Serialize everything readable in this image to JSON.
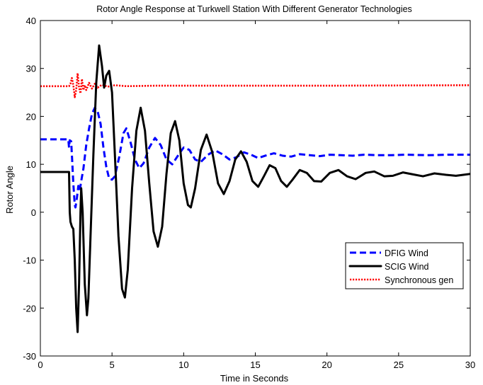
{
  "chart_data": {
    "type": "line",
    "title": "Rotor Angle Response at Turkwell Station With Different Generator Technologies",
    "xlabel": "Time in Seconds",
    "ylabel": "Rotor Angle",
    "xlim": [
      0,
      30
    ],
    "ylim": [
      -30,
      40
    ],
    "xticks": [
      0,
      5,
      10,
      15,
      20,
      25,
      30
    ],
    "yticks": [
      -30,
      -20,
      -10,
      0,
      10,
      20,
      30,
      40
    ],
    "grid": false,
    "legend_position": "lower-right",
    "series": [
      {
        "name": "DFIG Wind",
        "color": "#0000ff",
        "style": "dashed",
        "points": [
          [
            0,
            15.2
          ],
          [
            1.95,
            15.2
          ],
          [
            2.0,
            13.5
          ],
          [
            2.05,
            15.0
          ],
          [
            2.15,
            14.8
          ],
          [
            2.2,
            12.0
          ],
          [
            2.3,
            6.0
          ],
          [
            2.4,
            1.5
          ],
          [
            2.45,
            1.0
          ],
          [
            2.55,
            3.0
          ],
          [
            2.65,
            5.5
          ],
          [
            2.75,
            4.5
          ],
          [
            2.85,
            6.5
          ],
          [
            3.0,
            9.0
          ],
          [
            3.2,
            14.0
          ],
          [
            3.4,
            17.5
          ],
          [
            3.6,
            20.5
          ],
          [
            3.8,
            21.8
          ],
          [
            4.0,
            21.0
          ],
          [
            4.2,
            18.5
          ],
          [
            4.4,
            13.5
          ],
          [
            4.6,
            9.5
          ],
          [
            4.8,
            7.0
          ],
          [
            5.0,
            6.8
          ],
          [
            5.2,
            7.5
          ],
          [
            5.5,
            11.5
          ],
          [
            5.8,
            16.5
          ],
          [
            6.0,
            17.5
          ],
          [
            6.3,
            14.5
          ],
          [
            6.6,
            11.0
          ],
          [
            6.9,
            9.2
          ],
          [
            7.2,
            10.2
          ],
          [
            7.6,
            13.5
          ],
          [
            8.0,
            15.5
          ],
          [
            8.4,
            14.0
          ],
          [
            8.8,
            11.0
          ],
          [
            9.2,
            10.0
          ],
          [
            9.6,
            11.8
          ],
          [
            10.0,
            13.5
          ],
          [
            10.4,
            13.0
          ],
          [
            10.8,
            11.0
          ],
          [
            11.2,
            10.5
          ],
          [
            11.7,
            12.0
          ],
          [
            12.2,
            12.9
          ],
          [
            12.7,
            12.1
          ],
          [
            13.2,
            11.0
          ],
          [
            13.7,
            11.5
          ],
          [
            14.2,
            12.5
          ],
          [
            14.7,
            12.0
          ],
          [
            15.2,
            11.3
          ],
          [
            15.7,
            11.8
          ],
          [
            16.3,
            12.3
          ],
          [
            16.9,
            11.8
          ],
          [
            17.5,
            11.6
          ],
          [
            18.1,
            12.1
          ],
          [
            18.8,
            11.9
          ],
          [
            19.5,
            11.7
          ],
          [
            20.2,
            12.0
          ],
          [
            21.0,
            11.9
          ],
          [
            21.8,
            11.8
          ],
          [
            22.6,
            12.0
          ],
          [
            23.5,
            11.9
          ],
          [
            24.5,
            11.9
          ],
          [
            25.5,
            12.0
          ],
          [
            27.0,
            11.9
          ],
          [
            28.5,
            12.0
          ],
          [
            30,
            12.0
          ]
        ]
      },
      {
        "name": "SCIG Wind",
        "color": "#000000",
        "style": "solid",
        "points": [
          [
            0,
            8.4
          ],
          [
            2.0,
            8.4
          ],
          [
            2.05,
            0.0
          ],
          [
            2.1,
            -2.0
          ],
          [
            2.15,
            -2.5
          ],
          [
            2.2,
            -3.0
          ],
          [
            2.3,
            -3.5
          ],
          [
            2.4,
            -10.0
          ],
          [
            2.5,
            -20.0
          ],
          [
            2.6,
            -25.0
          ],
          [
            2.7,
            -15.0
          ],
          [
            2.8,
            0.0
          ],
          [
            2.85,
            5.0
          ],
          [
            2.95,
            0.0
          ],
          [
            3.1,
            -15.0
          ],
          [
            3.25,
            -21.5
          ],
          [
            3.35,
            -18.0
          ],
          [
            3.5,
            -5.0
          ],
          [
            3.7,
            12.0
          ],
          [
            3.9,
            27.0
          ],
          [
            4.1,
            34.8
          ],
          [
            4.3,
            30.5
          ],
          [
            4.45,
            26.0
          ],
          [
            4.6,
            28.5
          ],
          [
            4.8,
            29.5
          ],
          [
            5.0,
            25.0
          ],
          [
            5.2,
            12.0
          ],
          [
            5.45,
            -5.0
          ],
          [
            5.7,
            -16.0
          ],
          [
            5.9,
            -17.8
          ],
          [
            6.1,
            -12.0
          ],
          [
            6.4,
            5.0
          ],
          [
            6.7,
            17.0
          ],
          [
            7.0,
            21.8
          ],
          [
            7.3,
            17.0
          ],
          [
            7.6,
            6.0
          ],
          [
            7.9,
            -4.0
          ],
          [
            8.2,
            -7.2
          ],
          [
            8.5,
            -3.0
          ],
          [
            8.8,
            8.0
          ],
          [
            9.1,
            16.5
          ],
          [
            9.4,
            19.0
          ],
          [
            9.7,
            15.0
          ],
          [
            10.0,
            6.0
          ],
          [
            10.3,
            1.5
          ],
          [
            10.5,
            1.0
          ],
          [
            10.8,
            5.0
          ],
          [
            11.2,
            13.0
          ],
          [
            11.6,
            16.2
          ],
          [
            12.0,
            12.5
          ],
          [
            12.4,
            6.0
          ],
          [
            12.8,
            3.8
          ],
          [
            13.2,
            6.5
          ],
          [
            13.6,
            11.0
          ],
          [
            14.0,
            12.7
          ],
          [
            14.4,
            10.5
          ],
          [
            14.8,
            6.5
          ],
          [
            15.2,
            5.3
          ],
          [
            15.6,
            7.5
          ],
          [
            16.0,
            9.8
          ],
          [
            16.4,
            9.2
          ],
          [
            16.8,
            6.5
          ],
          [
            17.2,
            5.3
          ],
          [
            17.6,
            6.8
          ],
          [
            18.1,
            8.8
          ],
          [
            18.6,
            8.2
          ],
          [
            19.1,
            6.5
          ],
          [
            19.6,
            6.4
          ],
          [
            20.2,
            8.2
          ],
          [
            20.8,
            8.8
          ],
          [
            21.4,
            7.5
          ],
          [
            22.0,
            6.9
          ],
          [
            22.7,
            8.2
          ],
          [
            23.3,
            8.5
          ],
          [
            24.0,
            7.5
          ],
          [
            24.6,
            7.6
          ],
          [
            25.3,
            8.3
          ],
          [
            26.0,
            7.9
          ],
          [
            26.7,
            7.5
          ],
          [
            27.5,
            8.1
          ],
          [
            28.3,
            7.8
          ],
          [
            29.0,
            7.6
          ],
          [
            30,
            8.0
          ]
        ]
      },
      {
        "name": "Synchronous gen",
        "color": "#ff0000",
        "style": "dotted",
        "points": [
          [
            0,
            26.3
          ],
          [
            2.0,
            26.3
          ],
          [
            2.1,
            26.8
          ],
          [
            2.2,
            28.0
          ],
          [
            2.3,
            26.5
          ],
          [
            2.4,
            24.0
          ],
          [
            2.5,
            25.5
          ],
          [
            2.6,
            29.0
          ],
          [
            2.7,
            26.0
          ],
          [
            2.8,
            24.8
          ],
          [
            2.9,
            27.8
          ],
          [
            3.0,
            25.5
          ],
          [
            3.1,
            26.5
          ],
          [
            3.2,
            25.5
          ],
          [
            3.4,
            27.0
          ],
          [
            3.6,
            25.8
          ],
          [
            3.8,
            26.8
          ],
          [
            4.0,
            26.0
          ],
          [
            4.3,
            26.6
          ],
          [
            4.7,
            26.2
          ],
          [
            5.2,
            26.5
          ],
          [
            6.0,
            26.3
          ],
          [
            8.0,
            26.4
          ],
          [
            12.0,
            26.4
          ],
          [
            20.0,
            26.4
          ],
          [
            30,
            26.5
          ]
        ]
      }
    ]
  }
}
